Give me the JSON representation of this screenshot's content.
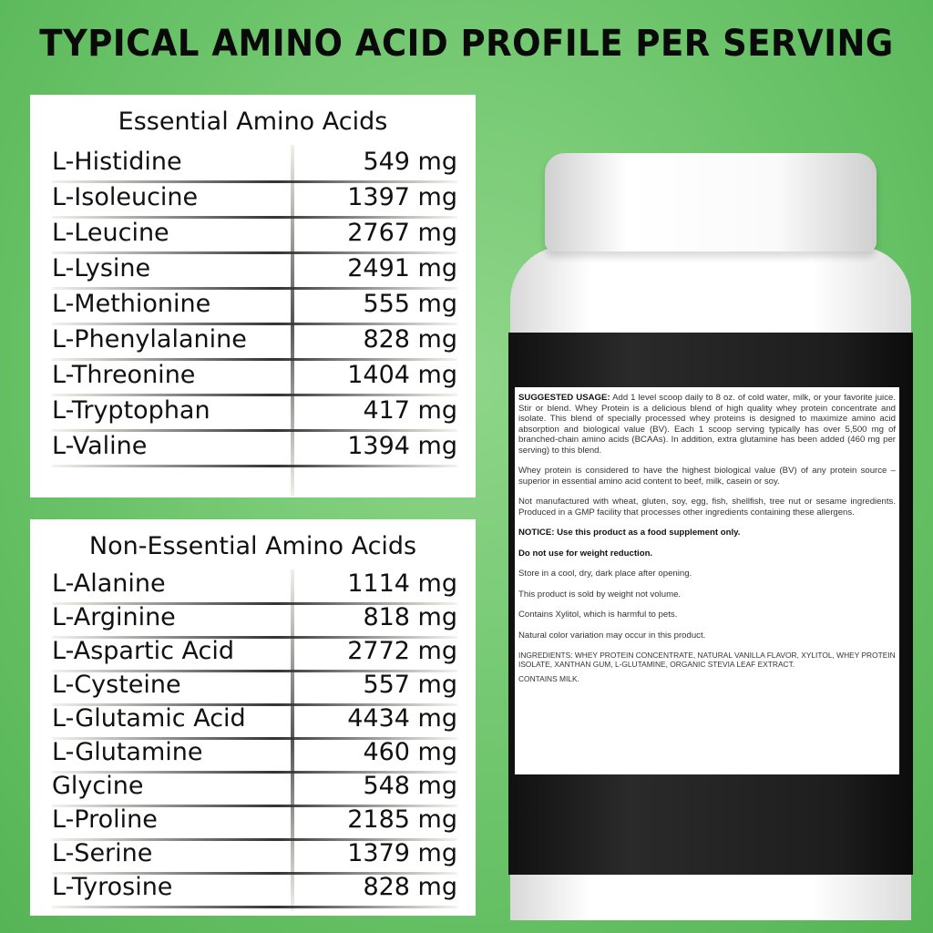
{
  "title": "TYPICAL AMINO ACID PROFILE PER SERVING",
  "essential": {
    "heading": "Essential Amino Acids",
    "items": [
      {
        "name": "L-Histidine",
        "value": "549 mg"
      },
      {
        "name": "L-Isoleucine",
        "value": "1397 mg"
      },
      {
        "name": "L-Leucine",
        "value": "2767 mg"
      },
      {
        "name": "L-Lysine",
        "value": "2491 mg"
      },
      {
        "name": "L-Methionine",
        "value": "555 mg"
      },
      {
        "name": "L-Phenylalanine",
        "value": "828 mg"
      },
      {
        "name": "L-Threonine",
        "value": "1404 mg"
      },
      {
        "name": "L-Tryptophan",
        "value": "417 mg"
      },
      {
        "name": "L-Valine",
        "value": "1394 mg"
      }
    ]
  },
  "nonessential": {
    "heading": "Non-Essential Amino Acids",
    "items": [
      {
        "name": "L-Alanine",
        "value": "1114 mg"
      },
      {
        "name": "L-Arginine",
        "value": "818 mg"
      },
      {
        "name": "L-Aspartic Acid",
        "value": "2772 mg"
      },
      {
        "name": "L-Cysteine",
        "value": "557 mg"
      },
      {
        "name": "L-Glutamic Acid",
        "value": "4434 mg"
      },
      {
        "name": "L-Glutamine",
        "value": "460 mg"
      },
      {
        "name": "Glycine",
        "value": "548 mg"
      },
      {
        "name": "L-Proline",
        "value": "2185 mg"
      },
      {
        "name": "L-Serine",
        "value": "1379 mg"
      },
      {
        "name": "L-Tyrosine",
        "value": "828 mg"
      }
    ]
  },
  "label": {
    "usage_heading": "SUGGESTED USAGE:",
    "usage": "Add 1 level scoop daily to 8 oz. of cold water, milk, or your favorite juice. Stir or blend. Whey Protein is a delicious blend of high quality whey protein concentrate and isolate. This blend of specially processed whey proteins is designed to maximize amino acid absorption and biological value (BV). Each 1 scoop serving typically has over 5,500 mg of branched-chain amino acids (BCAAs). In addition, extra glutamine has been added (460 mg per serving) to this blend.",
    "bv": "Whey protein is considered to have the highest biological value (BV) of any protein source – superior in essential amino acid content to beef, milk, casein or soy.",
    "allergens": "Not manufactured with wheat, gluten, soy, egg, fish, shellfish, tree nut or sesame ingredients. Produced in a GMP facility that processes other ingredients containing these allergens.",
    "notice": "NOTICE: Use this product as a food supplement only.",
    "weight": "Do not use for weight reduction.",
    "store": "Store in a cool, dry, dark place after opening.",
    "sold": "This product is sold by weight not volume.",
    "xylitol": "Contains Xylitol, which is harmful to pets.",
    "color": "Natural color variation may occur in this product.",
    "ingredients": "INGREDIENTS: WHEY PROTEIN CONCENTRATE, NATURAL VANILLA FLAVOR, XYLITOL, WHEY PROTEIN ISOLATE, XANTHAN GUM, L-GLUTAMINE, ORGANIC STEVIA LEAF EXTRACT.",
    "milk": "CONTAINS MILK."
  },
  "colors": {
    "background": "#6cc46a",
    "text": "#0a0a0a"
  }
}
